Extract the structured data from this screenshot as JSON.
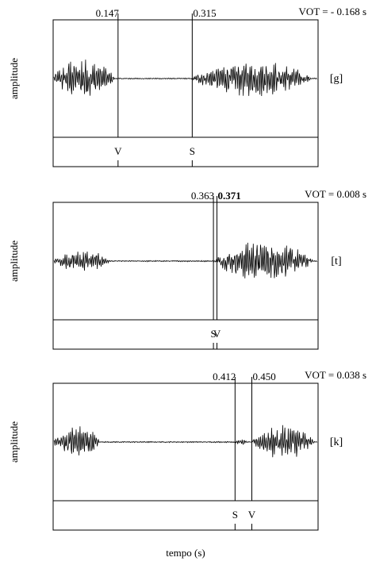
{
  "figure": {
    "ylabel": "amplitude",
    "xlabel": "tempo (s)"
  },
  "chart_data": [
    {
      "type": "waveform",
      "phoneme_label": "[g]",
      "ylabel": "amplitude",
      "vot_label": "VOT = - 0.168 s",
      "vot_seconds": -0.168,
      "markers": [
        {
          "time": 0.147,
          "time_label": "0.147",
          "tier_label": "V",
          "label_bold": false
        },
        {
          "time": 0.315,
          "time_label": "0.315",
          "tier_label": "S",
          "label_bold": false
        }
      ],
      "bursts": [
        {
          "start": 0.0,
          "end": 0.145,
          "peak": 0.45,
          "dense": true
        },
        {
          "start": 0.315,
          "end": 0.6,
          "peak": 0.36,
          "dense": true
        }
      ]
    },
    {
      "type": "waveform",
      "phoneme_label": "[t]",
      "ylabel": "amplitude",
      "vot_label": "VOT = 0.008 s",
      "vot_seconds": 0.008,
      "markers": [
        {
          "time": 0.363,
          "time_label": "0.363",
          "tier_label": "S",
          "label_bold": false
        },
        {
          "time": 0.371,
          "time_label": "0.371",
          "tier_label": "V",
          "label_bold": true
        }
      ],
      "bursts": [
        {
          "start": 0.0,
          "end": 0.135,
          "peak": 0.22,
          "dense": true
        },
        {
          "start": 0.363,
          "end": 0.6,
          "peak": 0.4,
          "dense": true
        }
      ]
    },
    {
      "type": "waveform",
      "phoneme_label": "[k]",
      "ylabel": "amplitude",
      "vot_label": "VOT = 0.038 s",
      "vot_seconds": 0.038,
      "markers": [
        {
          "time": 0.412,
          "time_label": "0.412",
          "tier_label": "S",
          "label_bold": false
        },
        {
          "time": 0.45,
          "time_label": "0.450",
          "tier_label": "V",
          "label_bold": false
        }
      ],
      "bursts": [
        {
          "start": 0.0,
          "end": 0.11,
          "peak": 0.37,
          "dense": true
        },
        {
          "start": 0.412,
          "end": 0.44,
          "peak": 0.06,
          "dense": true
        },
        {
          "start": 0.45,
          "end": 0.6,
          "peak": 0.36,
          "dense": true
        }
      ]
    }
  ]
}
